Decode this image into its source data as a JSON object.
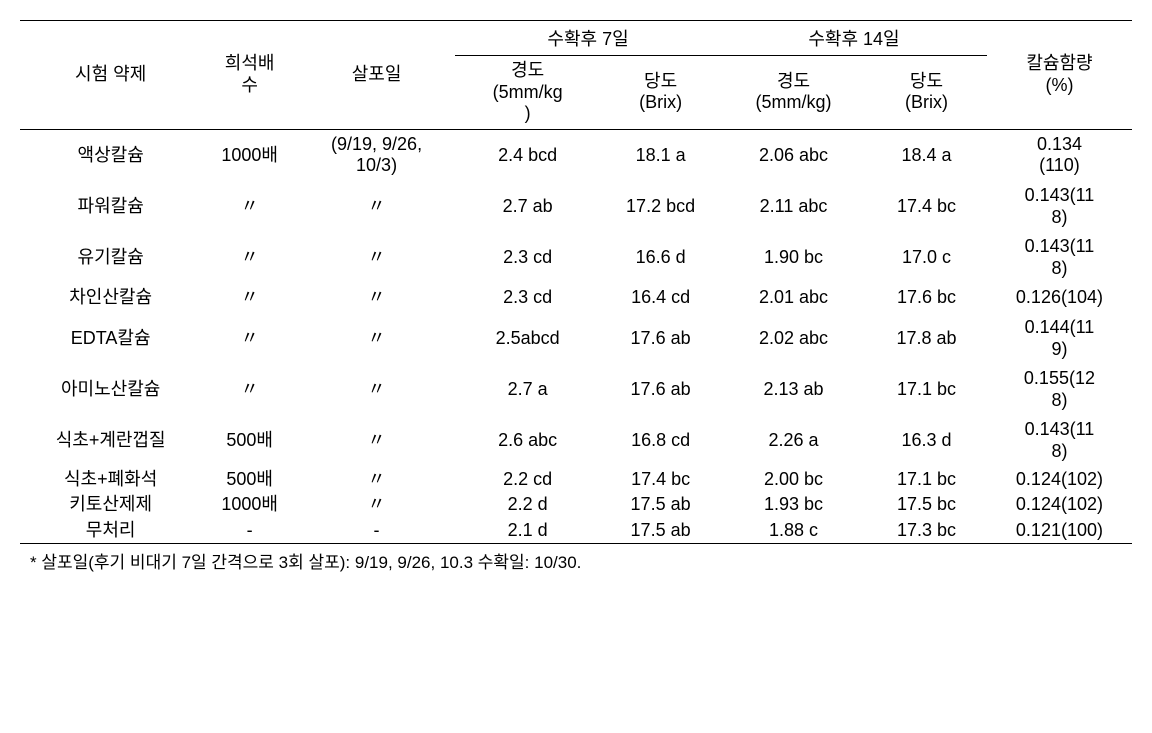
{
  "table": {
    "headers": {
      "agent": "시험 약제",
      "dilution": "희석배\n수",
      "spray_date": "살포일",
      "group_7day": "수확후 7일",
      "group_14day": "수확후 14일",
      "hardness_7": "경도\n(5mm/kg\n)",
      "brix_7": "당도\n(Brix)",
      "hardness_14": "경도\n(5mm/kg)",
      "brix_14": "당도\n(Brix)",
      "calcium": "칼슘함량\n(%)"
    },
    "rows": [
      {
        "agent": "액상칼슘",
        "dilution": "1000배",
        "spray": "(9/19, 9/26,\n10/3)",
        "h7": "2.4 bcd",
        "b7": "18.1 a",
        "h14": "2.06 abc",
        "b14": "18.4 a",
        "ca": "0.134\n(110)"
      },
      {
        "agent": "파워칼슘",
        "dilution": "〃",
        "spray": "〃",
        "h7": "2.7 ab",
        "b7": "17.2 bcd",
        "h14": "2.11 abc",
        "b14": "17.4 bc",
        "ca": "0.143(11\n8)"
      },
      {
        "agent": "유기칼슘",
        "dilution": "〃",
        "spray": "〃",
        "h7": "2.3 cd",
        "b7": "16.6 d",
        "h14": "1.90 bc",
        "b14": "17.0 c",
        "ca": "0.143(11\n8)"
      },
      {
        "agent": "차인산칼슘",
        "dilution": "〃",
        "spray": "〃",
        "h7": "2.3 cd",
        "b7": "16.4 cd",
        "h14": "2.01 abc",
        "b14": "17.6 bc",
        "ca": "0.126(104)"
      },
      {
        "agent": "EDTA칼슘",
        "dilution": "〃",
        "spray": "〃",
        "h7": "2.5abcd",
        "b7": "17.6 ab",
        "h14": "2.02 abc",
        "b14": "17.8 ab",
        "ca": "0.144(11\n9)"
      },
      {
        "agent": "아미노산칼슘",
        "dilution": "〃",
        "spray": "〃",
        "h7": "2.7 a",
        "b7": "17.6 ab",
        "h14": "2.13 ab",
        "b14": "17.1 bc",
        "ca": "0.155(12\n8)"
      },
      {
        "agent": "식초+계란껍질",
        "dilution": "500배",
        "spray": "〃",
        "h7": "2.6 abc",
        "b7": "16.8 cd",
        "h14": "2.26 a",
        "b14": "16.3 d",
        "ca": "0.143(11\n8)"
      },
      {
        "agent": "식초+폐화석",
        "dilution": "500배",
        "spray": "〃",
        "h7": "2.2 cd",
        "b7": "17.4 bc",
        "h14": "2.00 bc",
        "b14": "17.1 bc",
        "ca": "0.124(102)"
      },
      {
        "agent": "키토산제제",
        "dilution": "1000배",
        "spray": "〃",
        "h7": "2.2 d",
        "b7": "17.5 ab",
        "h14": "1.93 bc",
        "b14": "17.5 bc",
        "ca": "0.124(102)"
      },
      {
        "agent": "무처리",
        "dilution": "-",
        "spray": "-",
        "h7": "2.1 d",
        "b7": "17.5 ab",
        "h14": "1.88 c",
        "b14": "17.3 bc",
        "ca": "0.121(100)"
      }
    ],
    "footnote": "* 살포일(후기 비대기 7일 간격으로 3회 살포): 9/19, 9/26, 10.3 수확일: 10/30."
  }
}
